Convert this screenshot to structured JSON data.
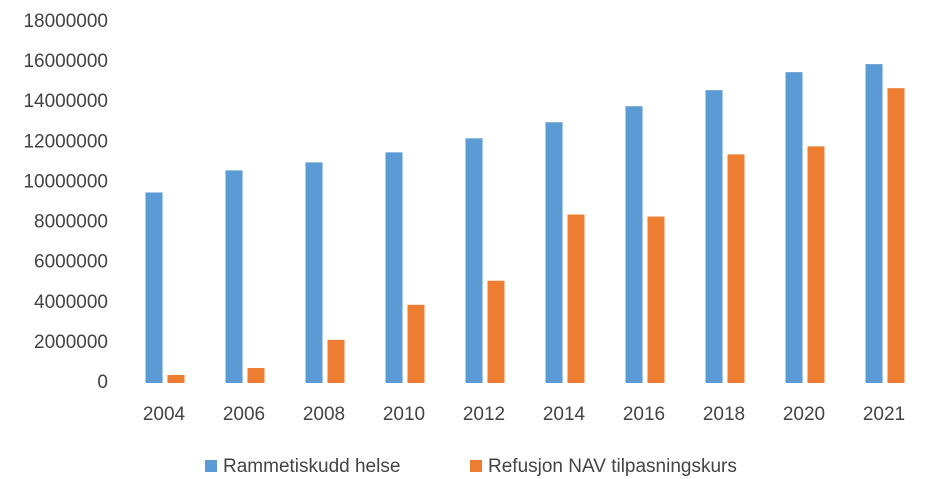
{
  "chart_data": {
    "type": "bar",
    "categories": [
      "2004",
      "2006",
      "2008",
      "2010",
      "2012",
      "2014",
      "2016",
      "2018",
      "2020",
      "2021"
    ],
    "series": [
      {
        "name": "Rammetiskudd helse",
        "color": "#5b9bd5",
        "values": [
          9500000,
          10600000,
          11000000,
          11500000,
          12200000,
          13000000,
          13800000,
          14600000,
          15500000,
          15900000
        ]
      },
      {
        "name": "Refusjon NAV tilpasningskurs",
        "color": "#ed7d31",
        "values": [
          400000,
          750000,
          2150000,
          3900000,
          5100000,
          8400000,
          8300000,
          11400000,
          11800000,
          14700000
        ]
      }
    ],
    "ylim": [
      0,
      18000000
    ],
    "yticks": [
      0,
      2000000,
      4000000,
      6000000,
      8000000,
      10000000,
      12000000,
      14000000,
      16000000,
      18000000
    ],
    "grid": false,
    "legend": "bottom"
  }
}
